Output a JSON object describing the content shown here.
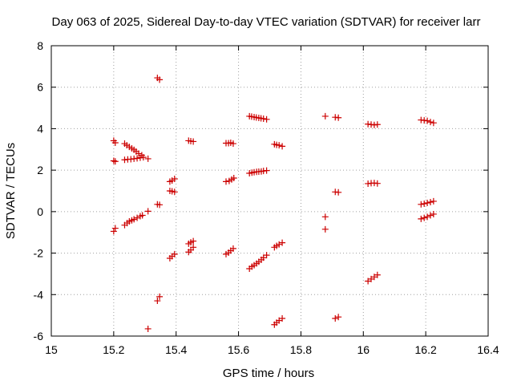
{
  "chart_data": {
    "type": "scatter",
    "title": "Day 063 of 2025, Sidereal Day-to-day VTEC variation (SDTVAR) for receiver larr",
    "xlabel": "GPS time / hours",
    "ylabel": "SDTVAR / TECUs",
    "xlim": [
      15,
      16.4
    ],
    "ylim": [
      -6,
      8
    ],
    "xticks": [
      15,
      15.2,
      15.4,
      15.6,
      15.8,
      16,
      16.2,
      16.4
    ],
    "xtick_labels": [
      "15",
      "15.2",
      "15.4",
      "15.6",
      "15.8",
      "16",
      "16.2",
      "16.4"
    ],
    "yticks": [
      -6,
      -4,
      -2,
      0,
      2,
      4,
      6,
      8
    ],
    "ytick_labels": [
      "-6",
      "-4",
      "-2",
      "0",
      "2",
      "4",
      "6",
      "8"
    ],
    "grid": true,
    "marker": "+",
    "series": [
      {
        "name": "SDTVAR",
        "color": "#cc0000",
        "points": [
          [
            15.2,
            3.42
          ],
          [
            15.205,
            3.32
          ],
          [
            15.2,
            2.45
          ],
          [
            15.205,
            2.42
          ],
          [
            15.2,
            -0.95
          ],
          [
            15.205,
            -0.8
          ],
          [
            15.235,
            3.28
          ],
          [
            15.242,
            3.2
          ],
          [
            15.25,
            3.12
          ],
          [
            15.258,
            3.05
          ],
          [
            15.265,
            2.98
          ],
          [
            15.272,
            2.9
          ],
          [
            15.28,
            2.8
          ],
          [
            15.29,
            2.72
          ],
          [
            15.235,
            2.5
          ],
          [
            15.245,
            2.52
          ],
          [
            15.255,
            2.53
          ],
          [
            15.265,
            2.55
          ],
          [
            15.275,
            2.57
          ],
          [
            15.285,
            2.6
          ],
          [
            15.295,
            2.62
          ],
          [
            15.31,
            2.55
          ],
          [
            15.235,
            -0.65
          ],
          [
            15.243,
            -0.55
          ],
          [
            15.25,
            -0.47
          ],
          [
            15.258,
            -0.42
          ],
          [
            15.265,
            -0.37
          ],
          [
            15.275,
            -0.3
          ],
          [
            15.285,
            -0.22
          ],
          [
            15.292,
            -0.18
          ],
          [
            15.31,
            0.02
          ],
          [
            15.31,
            -5.65
          ],
          [
            15.34,
            6.45
          ],
          [
            15.347,
            6.36
          ],
          [
            15.34,
            0.35
          ],
          [
            15.347,
            0.33
          ],
          [
            15.34,
            -4.3
          ],
          [
            15.347,
            -4.1
          ],
          [
            15.38,
            1.45
          ],
          [
            15.387,
            1.5
          ],
          [
            15.395,
            1.58
          ],
          [
            15.38,
            1.0
          ],
          [
            15.387,
            0.98
          ],
          [
            15.395,
            0.95
          ],
          [
            15.38,
            -2.25
          ],
          [
            15.387,
            -2.15
          ],
          [
            15.395,
            -2.05
          ],
          [
            15.44,
            3.42
          ],
          [
            15.447,
            3.4
          ],
          [
            15.455,
            3.38
          ],
          [
            15.44,
            -1.55
          ],
          [
            15.447,
            -1.48
          ],
          [
            15.455,
            -1.42
          ],
          [
            15.44,
            -1.95
          ],
          [
            15.447,
            -1.85
          ],
          [
            15.455,
            -1.72
          ],
          [
            15.56,
            3.3
          ],
          [
            15.568,
            3.3
          ],
          [
            15.575,
            3.32
          ],
          [
            15.583,
            3.28
          ],
          [
            15.56,
            1.45
          ],
          [
            15.57,
            1.48
          ],
          [
            15.578,
            1.55
          ],
          [
            15.585,
            1.62
          ],
          [
            15.56,
            -2.05
          ],
          [
            15.568,
            -1.98
          ],
          [
            15.575,
            -1.88
          ],
          [
            15.583,
            -1.78
          ],
          [
            15.635,
            4.6
          ],
          [
            15.642,
            4.58
          ],
          [
            15.65,
            4.56
          ],
          [
            15.657,
            4.54
          ],
          [
            15.665,
            4.52
          ],
          [
            15.672,
            4.5
          ],
          [
            15.68,
            4.48
          ],
          [
            15.69,
            4.45
          ],
          [
            15.635,
            1.85
          ],
          [
            15.643,
            1.88
          ],
          [
            15.65,
            1.9
          ],
          [
            15.658,
            1.92
          ],
          [
            15.665,
            1.93
          ],
          [
            15.673,
            1.94
          ],
          [
            15.68,
            1.96
          ],
          [
            15.69,
            1.98
          ],
          [
            15.635,
            -2.75
          ],
          [
            15.643,
            -2.65
          ],
          [
            15.65,
            -2.58
          ],
          [
            15.658,
            -2.5
          ],
          [
            15.665,
            -2.42
          ],
          [
            15.673,
            -2.32
          ],
          [
            15.68,
            -2.22
          ],
          [
            15.69,
            -2.1
          ],
          [
            15.715,
            3.25
          ],
          [
            15.722,
            3.22
          ],
          [
            15.73,
            3.2
          ],
          [
            15.74,
            3.15
          ],
          [
            15.715,
            -1.72
          ],
          [
            15.722,
            -1.65
          ],
          [
            15.73,
            -1.58
          ],
          [
            15.74,
            -1.5
          ],
          [
            15.715,
            -5.45
          ],
          [
            15.722,
            -5.35
          ],
          [
            15.73,
            -5.25
          ],
          [
            15.74,
            -5.15
          ],
          [
            15.878,
            4.6
          ],
          [
            15.878,
            -0.25
          ],
          [
            15.878,
            -0.85
          ],
          [
            15.91,
            4.55
          ],
          [
            15.92,
            4.53
          ],
          [
            15.91,
            0.95
          ],
          [
            15.92,
            0.93
          ],
          [
            15.91,
            -5.15
          ],
          [
            15.92,
            -5.08
          ],
          [
            16.015,
            4.22
          ],
          [
            16.025,
            4.2
          ],
          [
            16.035,
            4.18
          ],
          [
            16.045,
            4.2
          ],
          [
            16.015,
            1.35
          ],
          [
            16.025,
            1.37
          ],
          [
            16.035,
            1.38
          ],
          [
            16.045,
            1.36
          ],
          [
            16.015,
            -3.35
          ],
          [
            16.025,
            -3.25
          ],
          [
            16.035,
            -3.15
          ],
          [
            16.045,
            -3.05
          ],
          [
            16.185,
            4.42
          ],
          [
            16.195,
            4.4
          ],
          [
            16.205,
            4.38
          ],
          [
            16.215,
            4.32
          ],
          [
            16.225,
            4.28
          ],
          [
            16.185,
            0.35
          ],
          [
            16.195,
            0.38
          ],
          [
            16.205,
            0.42
          ],
          [
            16.215,
            0.46
          ],
          [
            16.225,
            0.5
          ],
          [
            16.185,
            -0.35
          ],
          [
            16.195,
            -0.3
          ],
          [
            16.205,
            -0.25
          ],
          [
            16.215,
            -0.18
          ],
          [
            16.225,
            -0.12
          ]
        ]
      }
    ]
  }
}
